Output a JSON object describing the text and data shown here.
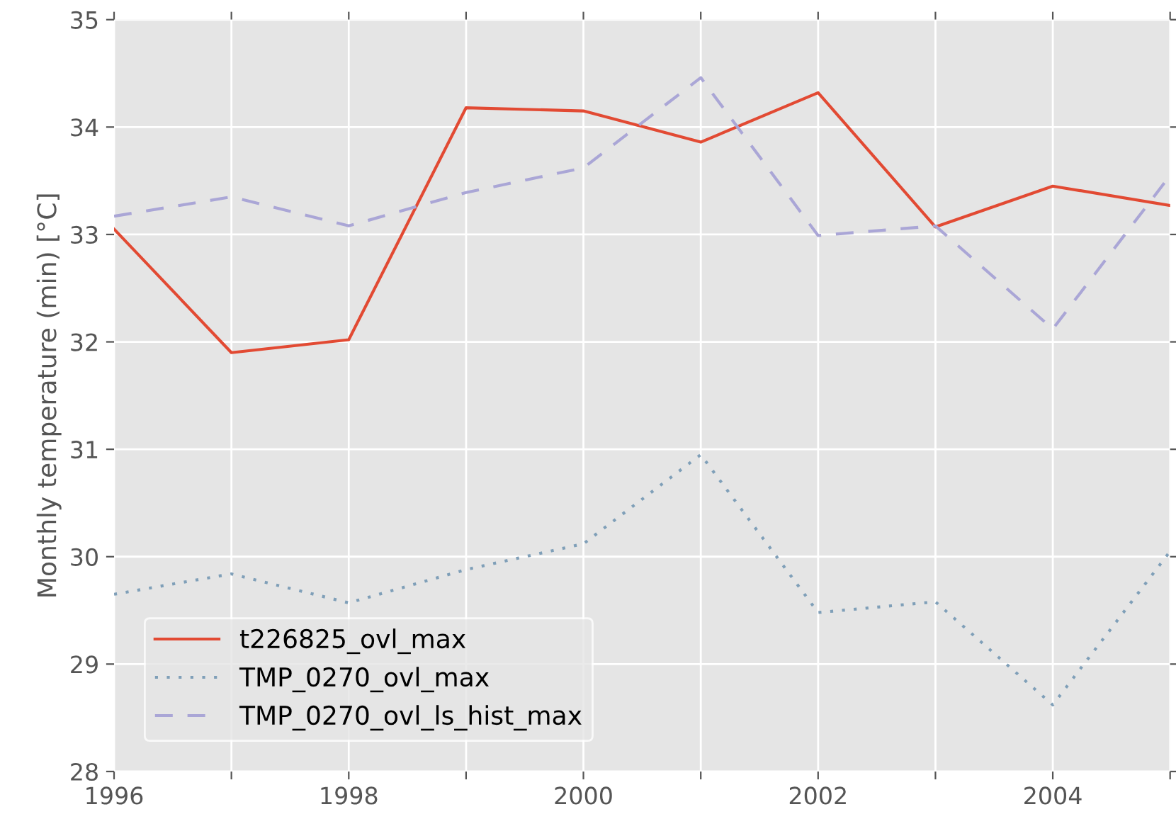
{
  "chart_data": {
    "type": "line",
    "ylabel": "Monthly temperature (min) [°C]",
    "x": [
      1996,
      1997,
      1998,
      1999,
      2000,
      2001,
      2002,
      2003,
      2004,
      2005
    ],
    "series": [
      {
        "name": "t226825_ovl_max",
        "color": "#e24a33",
        "line_style": "solid",
        "values": [
          33.05,
          31.9,
          32.02,
          34.18,
          34.15,
          33.86,
          34.32,
          33.07,
          33.45,
          33.27
        ]
      },
      {
        "name": "TMP_0270_ovl_max",
        "color": "#7f9fb8",
        "line_style": "dotted",
        "values": [
          29.65,
          29.84,
          29.57,
          29.88,
          30.12,
          30.95,
          29.48,
          29.58,
          28.62,
          30.05
        ]
      },
      {
        "name": "TMP_0270_ovl_ls_hist_max",
        "color": "#aaa6d6",
        "line_style": "dashed",
        "values": [
          33.17,
          33.35,
          33.08,
          33.39,
          33.62,
          34.46,
          32.99,
          33.08,
          32.12,
          33.55
        ]
      }
    ],
    "xlim": [
      1996,
      2005
    ],
    "xticks": [
      1996,
      {
        "value": 1997,
        "label": null
      },
      1998,
      {
        "value": 1999,
        "label": null
      },
      2000,
      {
        "value": 2001,
        "label": null
      },
      2002,
      {
        "value": 2003,
        "label": null
      },
      2004,
      {
        "value": 2005,
        "label": null
      }
    ],
    "ylim": [
      28,
      35
    ],
    "yticks": [
      28,
      29,
      30,
      31,
      32,
      33,
      34,
      35
    ],
    "grid": true,
    "legend": "bottom left",
    "marker": "none"
  }
}
